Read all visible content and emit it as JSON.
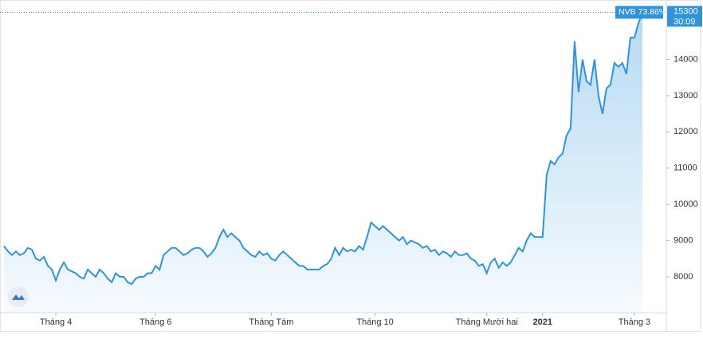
{
  "chart_data": {
    "type": "area",
    "symbol_label": "NVB 73.86%",
    "countdown": "30:09",
    "color": "#2f94dc",
    "values": [
      8850,
      8700,
      8600,
      8700,
      8600,
      8650,
      8800,
      8750,
      8500,
      8450,
      8550,
      8300,
      8200,
      7900,
      8200,
      8400,
      8200,
      8150,
      8100,
      8000,
      7950,
      8200,
      8100,
      8000,
      8200,
      8100,
      7950,
      7850,
      8100,
      8000,
      8000,
      7850,
      7800,
      7950,
      8000,
      8000,
      8100,
      8100,
      8300,
      8200,
      8600,
      8700,
      8800,
      8800,
      8700,
      8600,
      8650,
      8750,
      8800,
      8800,
      8700,
      8550,
      8650,
      8800,
      9100,
      9300,
      9100,
      9200,
      9100,
      9000,
      8800,
      8700,
      8600,
      8550,
      8700,
      8600,
      8650,
      8500,
      8450,
      8600,
      8700,
      8600,
      8500,
      8400,
      8300,
      8300,
      8200,
      8200,
      8200,
      8200,
      8300,
      8350,
      8500,
      8800,
      8600,
      8800,
      8700,
      8750,
      8700,
      8850,
      8750,
      9100,
      9500,
      9400,
      9300,
      9400,
      9300,
      9200,
      9100,
      9000,
      9100,
      8900,
      9000,
      8950,
      8900,
      8800,
      8850,
      8700,
      8750,
      8600,
      8700,
      8650,
      8550,
      8700,
      8600,
      8600,
      8650,
      8500,
      8450,
      8300,
      8350,
      8100,
      8400,
      8500,
      8250,
      8400,
      8300,
      8400,
      8600,
      8800,
      8700,
      9000,
      9200,
      9100,
      9100,
      9100,
      10800,
      11200,
      11100,
      11300,
      11400,
      11900,
      12100,
      14500,
      13100,
      14000,
      13400,
      13300,
      14000,
      13000,
      12500,
      13200,
      13300,
      13900,
      13800,
      13900,
      13600,
      14600,
      14600,
      15000,
      15300
    ],
    "xlim": [
      0,
      166
    ],
    "xticks": [
      {
        "value": 13,
        "label": "Tháng 4"
      },
      {
        "value": 38,
        "label": "Tháng 6"
      },
      {
        "value": 67,
        "label": "Tháng Tám"
      },
      {
        "value": 93,
        "label": "Tháng 10"
      },
      {
        "value": 121,
        "label": "Tháng Mười hai"
      },
      {
        "value": 135,
        "label": "2021"
      },
      {
        "value": 158,
        "label": "Tháng 3"
      }
    ],
    "ylim": [
      7010,
      15640
    ],
    "yticks": [
      8000,
      9000,
      10000,
      11000,
      12000,
      13000,
      14000
    ]
  }
}
